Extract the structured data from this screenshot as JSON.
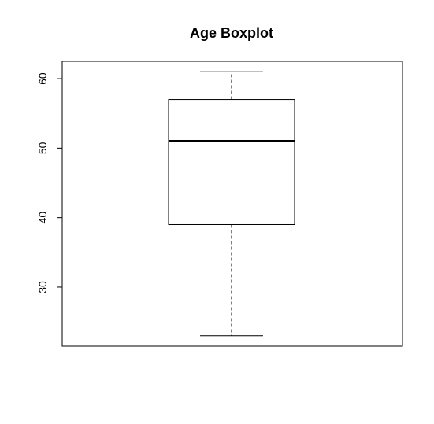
{
  "chart_data": {
    "type": "boxplot",
    "title": "Age Boxplot",
    "xlabel": "",
    "ylabel": "",
    "ylim": [
      21.5,
      62.5
    ],
    "yticks": [
      30,
      40,
      50,
      60
    ],
    "ytick_labels": [
      "30",
      "40",
      "50",
      "60"
    ],
    "grid": false,
    "legend": "none",
    "box": {
      "min": 23,
      "q1": 39,
      "median": 51,
      "q3": 57,
      "max": 61
    },
    "colors": {
      "line": "#000000",
      "background": "#ffffff"
    }
  }
}
